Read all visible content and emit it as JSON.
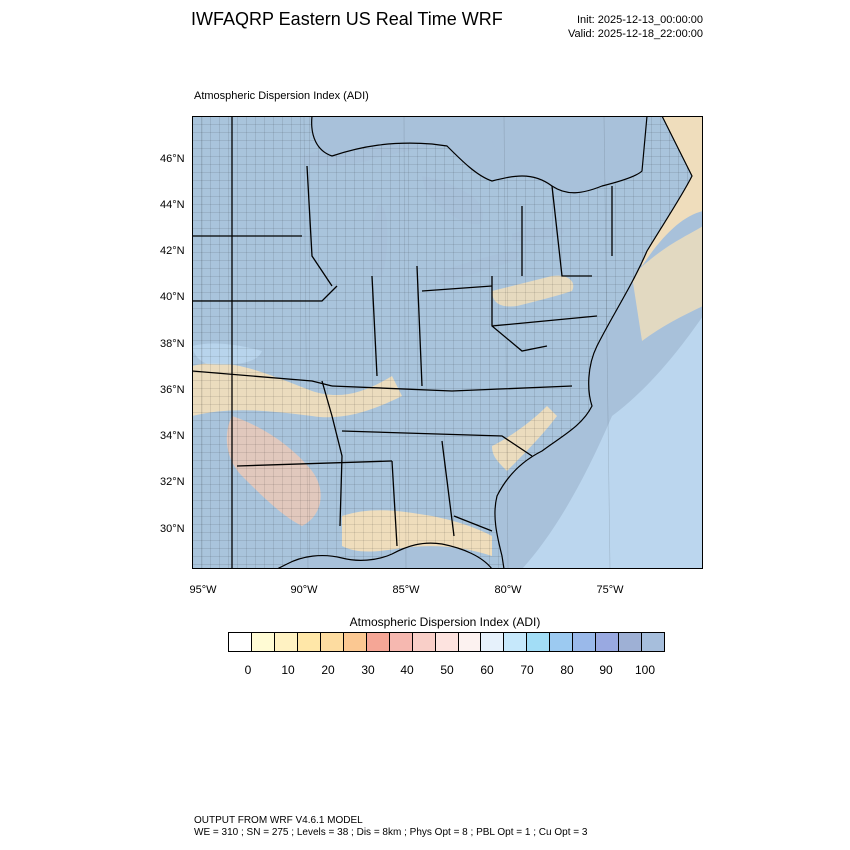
{
  "header": {
    "title": "IWFAQRP Eastern US Real Time WRF",
    "init": "Init: 2025-12-13_00:00:00",
    "valid": "Valid: 2025-12-18_22:00:00"
  },
  "map": {
    "title": "Atmospheric Dispersion Index   (ADI)",
    "lat_labels": [
      "46°N",
      "44°N",
      "42°N",
      "40°N",
      "38°N",
      "36°N",
      "34°N",
      "32°N",
      "30°N"
    ],
    "lon_labels": [
      "95°W",
      "90°W",
      "85°W",
      "80°W",
      "75°W"
    ],
    "colors": {
      "land_stable": "#a9c4dc",
      "water_very_stable": "#a8c1da",
      "low_adi": "#fbe2b6",
      "mid_adi": "#f4c9b3",
      "high_adi": "#bcd8f0",
      "boundaries": "#000000"
    }
  },
  "colorbar": {
    "title": "Atmospheric Dispersion Index  (ADI)",
    "colors": [
      "#ffffff",
      "#fffbd4",
      "#fff2c2",
      "#ffe7a8",
      "#fddca0",
      "#fbc892",
      "#f5a696",
      "#f6b8b0",
      "#f9cfc8",
      "#fde3df",
      "#fcf2f0",
      "#e6f1fb",
      "#c6e8fb",
      "#a2ddf6",
      "#9ccaf1",
      "#9ab9ea",
      "#99a9e1",
      "#9eb0d5",
      "#a6bedc"
    ],
    "tick_labels": [
      "0",
      "10",
      "20",
      "30",
      "40",
      "50",
      "60",
      "70",
      "80",
      "90",
      "100"
    ]
  },
  "footer": {
    "line1": "OUTPUT FROM WRF V4.6.1 MODEL",
    "line2": "WE = 310 ; SN = 275 ; Levels = 38 ; Dis = 8km ; Phys Opt = 8 ; PBL Opt = 1 ; Cu Opt = 3"
  }
}
